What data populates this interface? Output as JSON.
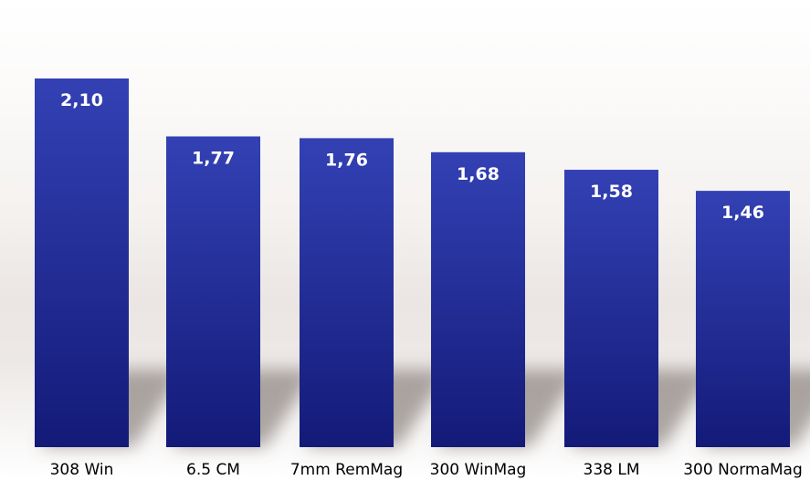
{
  "chart_data": {
    "type": "bar",
    "title": "",
    "xlabel": "",
    "ylabel": "",
    "ylim": [
      0,
      2.1
    ],
    "grid": false,
    "legend": "none",
    "categories": [
      "308 Win",
      "6.5 CM",
      "7mm RemMag",
      "300 WinMag",
      "338 LM",
      "300 NormaMag"
    ],
    "values": [
      2.1,
      1.77,
      1.76,
      1.68,
      1.58,
      1.46
    ],
    "value_labels": [
      "2,10",
      "1,77",
      "1,76",
      "1,68",
      "1,58",
      "1,46"
    ],
    "bar_color_top": "#3341b4",
    "bar_color_bottom": "#131a78"
  }
}
